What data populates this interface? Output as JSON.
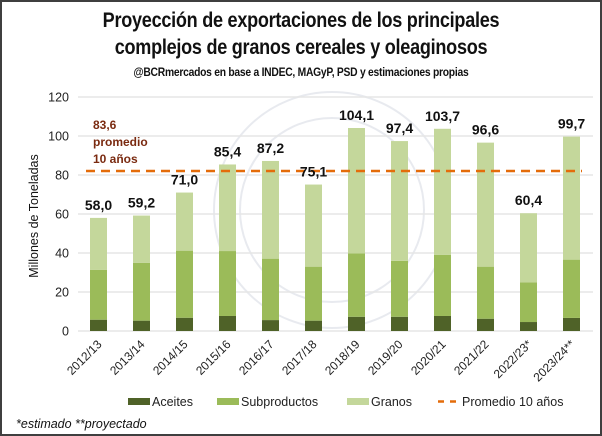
{
  "header": {
    "title_line1": "Proyección de exportaciones de los principales",
    "title_line2": "complejos de granos cereales y oleaginosos",
    "subtitle": "@BCRmercados  en base a INDEC, MAGyP, PSD y estimaciones propias"
  },
  "footnote": "*estimado **proyectado",
  "colors": {
    "aceites": "#4f6228",
    "subproductos": "#9bbb59",
    "granos": "#c4d79b",
    "promedio": "#e46c0a",
    "grid": "#e6e6e6"
  },
  "chart_data": {
    "type": "bar",
    "stacked": true,
    "title": "Proyección de exportaciones de los principales complejos de granos cereales y oleaginosos",
    "subtitle": "@BCRmercados en base a INDEC, MAGyP, PSD y estimaciones propias",
    "xlabel": "",
    "ylabel": "Millones de Toneladas",
    "ylim": [
      0,
      120
    ],
    "yticks": [
      0,
      20,
      40,
      60,
      80,
      100,
      120
    ],
    "grid": true,
    "legend_position": "bottom",
    "categories": [
      "2012/13",
      "2013/14",
      "2014/15",
      "2015/16",
      "2016/17",
      "2017/18",
      "2018/19",
      "2019/20",
      "2020/21",
      "2021/22",
      "2022/23*",
      "2023/24**"
    ],
    "series": [
      {
        "name": "Aceites",
        "values": [
          5.8,
          5.3,
          6.8,
          7.7,
          5.6,
          5.3,
          7.3,
          7.3,
          7.7,
          6.3,
          4.6,
          6.7
        ]
      },
      {
        "name": "Subproductos",
        "values": [
          25.5,
          29.7,
          34.4,
          33.3,
          31.5,
          27.7,
          32.5,
          28.7,
          31.3,
          26.7,
          20.4,
          29.9
        ]
      },
      {
        "name": "Granos",
        "values": [
          26.7,
          24.2,
          29.8,
          44.4,
          50.1,
          42.1,
          64.3,
          61.4,
          64.7,
          63.6,
          35.4,
          63.1
        ]
      }
    ],
    "totals": [
      58.0,
      59.2,
      71.0,
      85.4,
      87.2,
      75.1,
      104.1,
      97.4,
      103.7,
      96.6,
      60.4,
      99.7
    ],
    "total_labels": [
      "58,0",
      "59,2",
      "71,0",
      "85,4",
      "87,2",
      "75,1",
      "104,1",
      "97,4",
      "103,7",
      "96,6",
      "60,4",
      "99,7"
    ],
    "reference_line": {
      "name": "Promedio 10 años",
      "value": 83.6
    },
    "annotation": {
      "value_text": "83,6",
      "line2": "promedio",
      "line3": "10 años"
    },
    "legend": [
      "Aceites",
      "Subproductos",
      "Granos",
      "Promedio 10 años"
    ]
  }
}
